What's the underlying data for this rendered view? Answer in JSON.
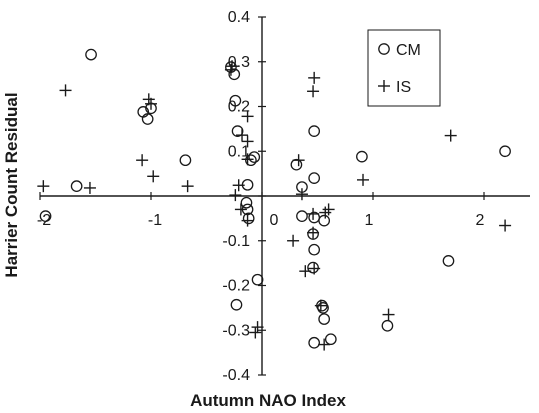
{
  "chart_data": {
    "type": "scatter",
    "title": "",
    "xlabel": "Autumn NAO Index",
    "ylabel": "Harrier Count Residual",
    "xlim": [
      -2,
      2.5
    ],
    "ylim": [
      -0.4,
      0.4
    ],
    "grid": false,
    "legend_position": "top-right",
    "x_ticks": [
      {
        "value": -2,
        "label": "-2"
      },
      {
        "value": -1,
        "label": "-1"
      },
      {
        "value": 0,
        "label": "0"
      },
      {
        "value": 1,
        "label": "1"
      },
      {
        "value": 2,
        "label": "2"
      }
    ],
    "y_ticks": [
      {
        "value": 0.4,
        "label": "0.4"
      },
      {
        "value": 0.3,
        "label": "0.3"
      },
      {
        "value": 0.2,
        "label": "0.2"
      },
      {
        "value": 0.1,
        "label": "0.1"
      },
      {
        "value": 0,
        "label": "0"
      },
      {
        "value": -0.1,
        "label": "-0.1"
      },
      {
        "value": -0.2,
        "label": "-0.2"
      },
      {
        "value": -0.3,
        "label": "-0.3"
      },
      {
        "value": -0.4,
        "label": "-0.4"
      }
    ],
    "series": [
      {
        "name": "CM",
        "marker": "circle",
        "points": [
          {
            "x": -1.54,
            "y": 0.316
          },
          {
            "x": -1.67,
            "y": 0.022
          },
          {
            "x": -1.95,
            "y": -0.045
          },
          {
            "x": -1.07,
            "y": 0.188
          },
          {
            "x": -1.03,
            "y": 0.172
          },
          {
            "x": -1.0,
            "y": 0.196
          },
          {
            "x": -0.69,
            "y": 0.08
          },
          {
            "x": -0.28,
            "y": 0.288
          },
          {
            "x": -0.25,
            "y": 0.272
          },
          {
            "x": -0.24,
            "y": 0.213
          },
          {
            "x": -0.22,
            "y": 0.145
          },
          {
            "x": -0.13,
            "y": 0.025
          },
          {
            "x": -0.1,
            "y": 0.08
          },
          {
            "x": -0.07,
            "y": 0.087
          },
          {
            "x": -0.14,
            "y": -0.015
          },
          {
            "x": -0.12,
            "y": -0.05
          },
          {
            "x": -0.13,
            "y": -0.03
          },
          {
            "x": -0.04,
            "y": -0.187
          },
          {
            "x": -0.23,
            "y": -0.243
          },
          {
            "x": 0.31,
            "y": 0.07
          },
          {
            "x": 0.47,
            "y": 0.145
          },
          {
            "x": 0.47,
            "y": 0.04
          },
          {
            "x": 0.36,
            "y": 0.02
          },
          {
            "x": 0.36,
            "y": -0.045
          },
          {
            "x": 0.47,
            "y": -0.048
          },
          {
            "x": 0.46,
            "y": -0.085
          },
          {
            "x": 0.47,
            "y": -0.12
          },
          {
            "x": 0.46,
            "y": -0.16
          },
          {
            "x": 0.56,
            "y": -0.055
          },
          {
            "x": 0.54,
            "y": -0.245
          },
          {
            "x": 0.55,
            "y": -0.25
          },
          {
            "x": 0.56,
            "y": -0.275
          },
          {
            "x": 0.47,
            "y": -0.328
          },
          {
            "x": 0.62,
            "y": -0.32
          },
          {
            "x": 0.9,
            "y": 0.088
          },
          {
            "x": 1.13,
            "y": -0.29
          },
          {
            "x": 1.68,
            "y": -0.145
          },
          {
            "x": 2.19,
            "y": 0.1
          }
        ]
      },
      {
        "name": "IS",
        "marker": "plus",
        "points": [
          {
            "x": -1.97,
            "y": 0.022
          },
          {
            "x": -1.77,
            "y": 0.236
          },
          {
            "x": -1.55,
            "y": 0.018
          },
          {
            "x": -1.08,
            "y": 0.08
          },
          {
            "x": -1.02,
            "y": 0.216
          },
          {
            "x": -1.0,
            "y": 0.206
          },
          {
            "x": -0.98,
            "y": 0.044
          },
          {
            "x": -0.67,
            "y": 0.022
          },
          {
            "x": -0.28,
            "y": 0.282
          },
          {
            "x": -0.27,
            "y": 0.29
          },
          {
            "x": -0.13,
            "y": 0.178
          },
          {
            "x": -0.18,
            "y": 0.136
          },
          {
            "x": -0.13,
            "y": 0.122
          },
          {
            "x": -0.13,
            "y": 0.082
          },
          {
            "x": -0.24,
            "y": 0.002
          },
          {
            "x": -0.21,
            "y": 0.024
          },
          {
            "x": -0.19,
            "y": -0.03
          },
          {
            "x": -0.13,
            "y": -0.055
          },
          {
            "x": -0.04,
            "y": -0.293
          },
          {
            "x": -0.06,
            "y": -0.305
          },
          {
            "x": 0.47,
            "y": 0.264
          },
          {
            "x": 0.46,
            "y": 0.234
          },
          {
            "x": 0.33,
            "y": 0.08
          },
          {
            "x": 0.36,
            "y": 0.004
          },
          {
            "x": 0.46,
            "y": -0.04
          },
          {
            "x": 0.57,
            "y": -0.037
          },
          {
            "x": 0.6,
            "y": -0.03
          },
          {
            "x": 0.46,
            "y": -0.082
          },
          {
            "x": 0.28,
            "y": -0.1
          },
          {
            "x": 0.39,
            "y": -0.168
          },
          {
            "x": 0.47,
            "y": -0.162
          },
          {
            "x": 0.53,
            "y": -0.245
          },
          {
            "x": 0.56,
            "y": -0.332
          },
          {
            "x": 0.91,
            "y": 0.036
          },
          {
            "x": 1.14,
            "y": -0.265
          },
          {
            "x": 1.7,
            "y": 0.135
          },
          {
            "x": 2.19,
            "y": -0.066
          }
        ]
      }
    ]
  },
  "legend": {
    "items": [
      {
        "label": "CM",
        "marker": "circle"
      },
      {
        "label": "IS",
        "marker": "plus"
      }
    ]
  }
}
